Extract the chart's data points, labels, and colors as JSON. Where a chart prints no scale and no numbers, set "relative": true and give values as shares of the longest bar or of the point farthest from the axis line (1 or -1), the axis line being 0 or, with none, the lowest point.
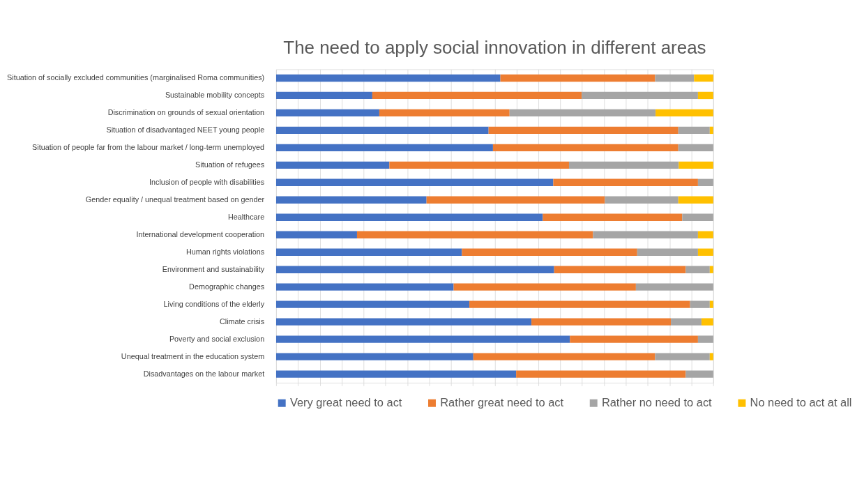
{
  "chart_data": {
    "type": "bar",
    "orientation": "horizontal",
    "stacked": true,
    "relative": true,
    "grid": "x",
    "legend": "bottom",
    "title": "The need to apply social innovation in different areas",
    "categories": [
      "Situation of socially excluded communities (marginalised Roma communities)",
      "Sustainable mobility concepts",
      "Discrimination on grounds of sexual orientation",
      "Situation of disadvantaged NEET young people",
      "Situation of people far from the labour market / long-term unemployed",
      "Situation of refugees",
      "Inclusion of people with disabilities",
      "Gender equality / unequal treatment based on gender",
      "Healthcare",
      "International development cooperation",
      "Human rights violations",
      "Environment and sustainability",
      "Demographic changes",
      "Living conditions of the elderly",
      "Climate crisis",
      "Poverty and social exclusion",
      "Unequal treatment in the education system",
      "Disadvantages on the labour market"
    ],
    "series": [
      {
        "name": "Very great need to act",
        "color": "#4472c4",
        "values": [
          0.513,
          0.22,
          0.236,
          0.486,
          0.496,
          0.259,
          0.634,
          0.344,
          0.61,
          0.185,
          0.425,
          0.636,
          0.406,
          0.442,
          0.584,
          0.672,
          0.451,
          0.549
        ]
      },
      {
        "name": "Rather great need to act",
        "color": "#ed7d31",
        "values": [
          0.354,
          0.479,
          0.298,
          0.434,
          0.424,
          0.411,
          0.331,
          0.408,
          0.319,
          0.54,
          0.401,
          0.301,
          0.417,
          0.505,
          0.319,
          0.293,
          0.416,
          0.388
        ]
      },
      {
        "name": "Rather no need to act",
        "color": "#a5a5a5",
        "values": [
          0.089,
          0.266,
          0.334,
          0.072,
          0.08,
          0.251,
          0.035,
          0.168,
          0.071,
          0.24,
          0.139,
          0.055,
          0.177,
          0.045,
          0.07,
          0.035,
          0.125,
          0.063
        ]
      },
      {
        "name": "No need to act at all",
        "color": "#ffc000",
        "values": [
          0.044,
          0.035,
          0.132,
          0.008,
          0,
          0.079,
          0,
          0.08,
          0,
          0.035,
          0.035,
          0.008,
          0,
          0.008,
          0.027,
          0,
          0.008,
          0
        ]
      }
    ]
  }
}
